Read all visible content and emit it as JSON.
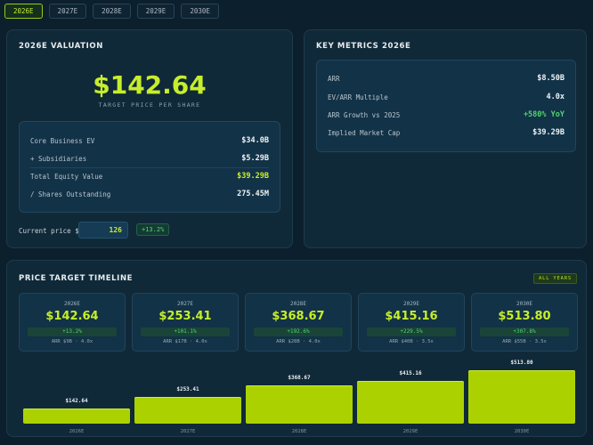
{
  "tabs": [
    "2026E",
    "2027E",
    "2028E",
    "2029E",
    "2030E"
  ],
  "active_tab": "2026E",
  "valuation": {
    "title": "2026E VALUATION",
    "price": "$142.64",
    "price_label": "TARGET PRICE PER SHARE",
    "rows": [
      {
        "label": "Core Business EV",
        "value": "$34.0B"
      },
      {
        "label": "+ Subsidiaries",
        "value": "$5.29B"
      },
      {
        "label": "Total Equity Value",
        "value": "$39.29B"
      },
      {
        "label": "/ Shares Outstanding",
        "value": "275.45M"
      }
    ],
    "current_price_label": "Current price $",
    "current_price_value": "126",
    "upside": "+13.2%"
  },
  "key_metrics": {
    "title": "KEY METRICS 2026E",
    "rows": [
      {
        "label": "ARR",
        "value": "$8.50B"
      },
      {
        "label": "EV/ARR Multiple",
        "value": "4.0x"
      },
      {
        "label": "ARR Growth vs 2025",
        "value": "+580% YoY"
      },
      {
        "label": "Implied Market Cap",
        "value": "$39.29B"
      }
    ]
  },
  "timeline": {
    "title": "PRICE TARGET TIMELINE",
    "badge": "ALL YEARS",
    "years": [
      {
        "year": "2026E",
        "price": "$142.64",
        "change": "+13.2%",
        "meta": "ARR $9B · 4.0x"
      },
      {
        "year": "2027E",
        "price": "$253.41",
        "change": "+101.1%",
        "meta": "ARR $17B · 4.0x"
      },
      {
        "year": "2028E",
        "price": "$368.67",
        "change": "+192.6%",
        "meta": "ARR $28B · 4.0x"
      },
      {
        "year": "2029E",
        "price": "$415.16",
        "change": "+229.5%",
        "meta": "ARR $40B · 3.5x"
      },
      {
        "year": "2030E",
        "price": "$513.80",
        "change": "+307.8%",
        "meta": "ARR $55B · 3.5x"
      }
    ]
  },
  "chart_data": {
    "type": "bar",
    "categories": [
      "2026E",
      "2027E",
      "2028E",
      "2029E",
      "2030E"
    ],
    "values": [
      142.64,
      253.41,
      368.67,
      415.16,
      513.8
    ],
    "value_labels": [
      "$142.64",
      "$253.41",
      "$368.67",
      "$415.16",
      "$513.80"
    ],
    "ylim": [
      0,
      513.8
    ],
    "grid": false,
    "colors": {
      "bar": "#abd200"
    }
  },
  "colors": {
    "accent": "#c7ee2b",
    "positive": "#4fd66e",
    "background": "#0c1f2d"
  }
}
